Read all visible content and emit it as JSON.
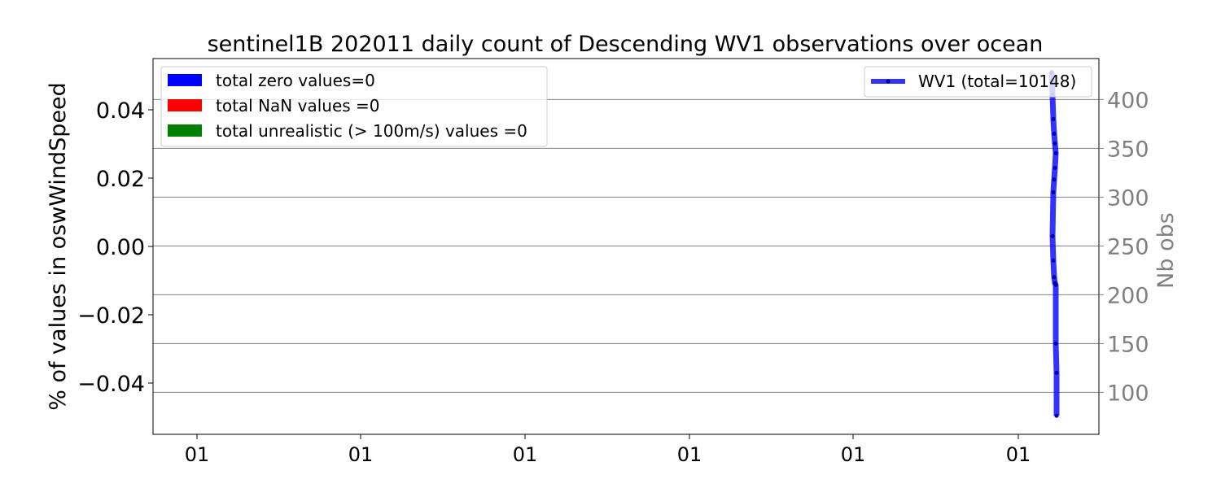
{
  "chart_data": {
    "type": "line",
    "title": "sentinel1B 202011 daily count of Descending WV1 observations over ocean",
    "left_axis": {
      "ylabel": "% of values in oswWindSpeed",
      "ylim": [
        -0.055,
        0.055
      ],
      "ticks": [
        0.04,
        0.02,
        0.0,
        -0.02,
        -0.04
      ],
      "tick_labels": [
        "0.04",
        "0.02",
        "0.00",
        "−0.02",
        "−0.04"
      ]
    },
    "right_axis": {
      "ylabel": "Nb obs",
      "ylim": [
        57,
        442
      ],
      "ticks": [
        100,
        150,
        200,
        250,
        300,
        350,
        400
      ],
      "tick_labels": [
        "100",
        "150",
        "200",
        "250",
        "300",
        "350",
        "400"
      ],
      "grid": true,
      "color": "#808080"
    },
    "x_axis": {
      "tick_labels": [
        "01",
        "01",
        "01",
        "01",
        "01",
        "01"
      ]
    },
    "bar_legend": {
      "placement": "upper-left",
      "items": [
        {
          "label": "total zero values=0",
          "color": "#0000ff"
        },
        {
          "label": "total NaN values =0",
          "color": "#ff0000"
        },
        {
          "label": "total unrealistic (> 100m/s) values =0",
          "color": "#008000"
        }
      ]
    },
    "series": [
      {
        "name": "WV1 (total=10148)",
        "color": "#0000ff",
        "values": [
          428,
          405,
          380,
          365,
          355,
          345,
          330,
          318,
          305,
          260,
          235,
          218,
          212,
          210,
          150,
          120,
          76
        ]
      }
    ],
    "line_legend": {
      "placement": "upper-right",
      "label": "WV1 (total=10148)"
    }
  }
}
